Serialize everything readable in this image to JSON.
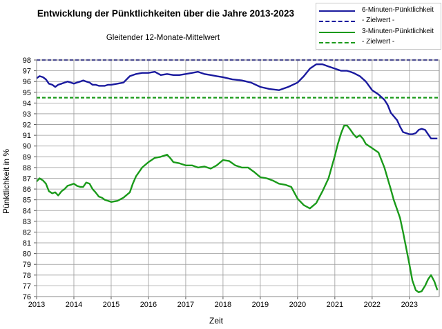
{
  "chart_data": {
    "type": "line",
    "title": "Entwicklung der Pünktlichkeiten über die Jahre 2013-2023",
    "subtitle": "Gleitender 12-Monate-Mittelwert",
    "xlabel": "Zeit",
    "ylabel": "Pünktlichkeit in %",
    "xlim": [
      2013,
      2023.8
    ],
    "ylim": [
      76,
      98
    ],
    "x_ticks": [
      "2013",
      "2014",
      "2015",
      "2016",
      "2017",
      "2018",
      "2019",
      "2020",
      "2021",
      "2022",
      "2023"
    ],
    "y_ticks": [
      76,
      77,
      78,
      79,
      80,
      81,
      82,
      83,
      84,
      85,
      86,
      87,
      88,
      89,
      90,
      91,
      92,
      93,
      94,
      95,
      96,
      97,
      98
    ],
    "grid": true,
    "legend_position": "top-right",
    "series": [
      {
        "name": "6-Minuten-Pünktlichkeit",
        "color": "#1a1a9e",
        "style": "solid",
        "x": [
          2013.0,
          2013.08,
          2013.17,
          2013.25,
          2013.33,
          2013.42,
          2013.5,
          2013.58,
          2013.67,
          2013.75,
          2013.83,
          2013.92,
          2014.0,
          2014.08,
          2014.17,
          2014.25,
          2014.33,
          2014.42,
          2014.5,
          2014.58,
          2014.67,
          2014.75,
          2014.83,
          2014.92,
          2015.0,
          2015.17,
          2015.33,
          2015.5,
          2015.67,
          2015.83,
          2016.0,
          2016.17,
          2016.33,
          2016.5,
          2016.67,
          2016.83,
          2017.0,
          2017.17,
          2017.33,
          2017.5,
          2017.67,
          2017.83,
          2018.0,
          2018.25,
          2018.5,
          2018.75,
          2019.0,
          2019.25,
          2019.5,
          2019.75,
          2020.0,
          2020.17,
          2020.33,
          2020.5,
          2020.67,
          2020.83,
          2021.0,
          2021.08,
          2021.17,
          2021.25,
          2021.33,
          2021.42,
          2021.5,
          2021.67,
          2021.83,
          2022.0,
          2022.17,
          2022.33,
          2022.42,
          2022.5,
          2022.67,
          2022.75,
          2022.83,
          2023.0,
          2023.08,
          2023.17,
          2023.25,
          2023.33,
          2023.42,
          2023.5,
          2023.58,
          2023.67,
          2023.75
        ],
        "values": [
          96.3,
          96.5,
          96.4,
          96.2,
          95.8,
          95.7,
          95.5,
          95.7,
          95.8,
          95.9,
          96.0,
          95.9,
          95.8,
          95.9,
          96.0,
          96.1,
          96.0,
          95.9,
          95.7,
          95.7,
          95.6,
          95.6,
          95.6,
          95.7,
          95.7,
          95.8,
          95.9,
          96.5,
          96.7,
          96.8,
          96.8,
          96.9,
          96.6,
          96.7,
          96.6,
          96.6,
          96.7,
          96.8,
          96.9,
          96.7,
          96.6,
          96.5,
          96.4,
          96.2,
          96.1,
          95.9,
          95.5,
          95.3,
          95.2,
          95.5,
          95.9,
          96.5,
          97.2,
          97.6,
          97.6,
          97.4,
          97.2,
          97.1,
          97.0,
          97.0,
          97.0,
          96.9,
          96.8,
          96.5,
          96.0,
          95.2,
          94.8,
          94.3,
          93.8,
          93.1,
          92.4,
          91.8,
          91.3,
          91.1,
          91.1,
          91.2,
          91.5,
          91.6,
          91.5,
          91.1,
          90.7,
          90.7,
          90.7
        ]
      },
      {
        "name": "- Zielwert -",
        "color": "#1a1a9e",
        "style": "dashed",
        "x": [
          2013.0,
          2023.8
        ],
        "values": [
          98.0,
          98.0
        ]
      },
      {
        "name": "3-Minuten-Pünktlichkeit",
        "color": "#1a9a1a",
        "style": "solid",
        "x": [
          2013.0,
          2013.08,
          2013.17,
          2013.25,
          2013.33,
          2013.42,
          2013.5,
          2013.58,
          2013.67,
          2013.75,
          2013.83,
          2013.92,
          2014.0,
          2014.08,
          2014.17,
          2014.25,
          2014.33,
          2014.42,
          2014.5,
          2014.58,
          2014.67,
          2014.75,
          2014.83,
          2014.92,
          2015.0,
          2015.17,
          2015.33,
          2015.5,
          2015.58,
          2015.67,
          2015.83,
          2016.0,
          2016.17,
          2016.33,
          2016.5,
          2016.58,
          2016.67,
          2016.83,
          2017.0,
          2017.17,
          2017.33,
          2017.5,
          2017.67,
          2017.83,
          2018.0,
          2018.17,
          2018.33,
          2018.5,
          2018.67,
          2018.83,
          2019.0,
          2019.17,
          2019.33,
          2019.5,
          2019.67,
          2019.83,
          2020.0,
          2020.17,
          2020.33,
          2020.5,
          2020.67,
          2020.83,
          2021.0,
          2021.08,
          2021.17,
          2021.25,
          2021.33,
          2021.42,
          2021.5,
          2021.58,
          2021.67,
          2021.75,
          2021.83,
          2022.0,
          2022.17,
          2022.33,
          2022.5,
          2022.58,
          2022.67,
          2022.75,
          2022.83,
          2023.0,
          2023.08,
          2023.17,
          2023.25,
          2023.33,
          2023.42,
          2023.5,
          2023.58,
          2023.67,
          2023.75
        ],
        "values": [
          86.7,
          87.0,
          86.8,
          86.5,
          85.8,
          85.6,
          85.7,
          85.4,
          85.8,
          86.0,
          86.3,
          86.4,
          86.5,
          86.3,
          86.2,
          86.2,
          86.6,
          86.5,
          86.0,
          85.7,
          85.3,
          85.2,
          85.0,
          84.9,
          84.8,
          84.9,
          85.2,
          85.7,
          86.5,
          87.2,
          88.0,
          88.5,
          88.9,
          89.0,
          89.2,
          88.9,
          88.5,
          88.4,
          88.2,
          88.2,
          88.0,
          88.1,
          87.9,
          88.2,
          88.7,
          88.6,
          88.2,
          88.0,
          88.0,
          87.6,
          87.1,
          87.0,
          86.8,
          86.5,
          86.4,
          86.2,
          85.1,
          84.5,
          84.2,
          84.7,
          85.8,
          87.0,
          89.1,
          90.2,
          91.2,
          91.9,
          91.9,
          91.5,
          91.1,
          90.8,
          91.0,
          90.7,
          90.2,
          89.8,
          89.4,
          88.0,
          86.0,
          85.0,
          84.1,
          83.3,
          82.0,
          79.0,
          77.5,
          76.6,
          76.4,
          76.5,
          77.0,
          77.6,
          78.0,
          77.4,
          76.6
        ]
      },
      {
        "name": "- Zielwert -",
        "color": "#1a9a1a",
        "style": "dashed",
        "x": [
          2013.0,
          2023.8
        ],
        "values": [
          94.5,
          94.5
        ]
      }
    ]
  }
}
